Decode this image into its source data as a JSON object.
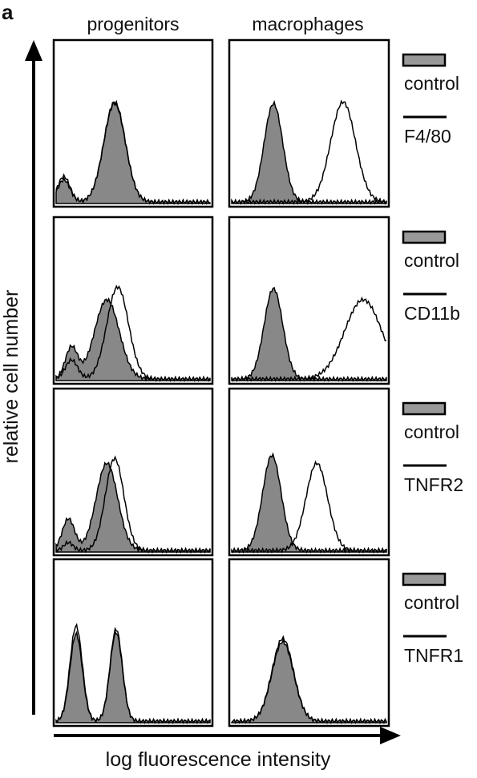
{
  "panel_label": "a",
  "columns": [
    "progenitors",
    "macrophages"
  ],
  "y_axis_label": "relative cell number",
  "x_axis_label": "log fluorescence intensity",
  "rows": [
    {
      "control_label": "control",
      "marker_label": "F4/80"
    },
    {
      "control_label": "control",
      "marker_label": "CD11b"
    },
    {
      "control_label": "control",
      "marker_label": "TNFR2"
    },
    {
      "control_label": "control",
      "marker_label": "TNFR1"
    }
  ]
}
